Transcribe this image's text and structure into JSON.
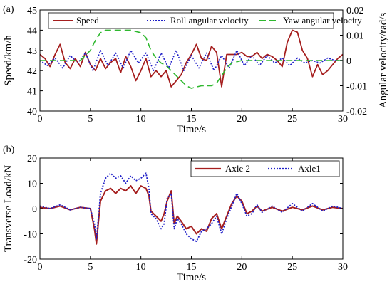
{
  "chart_data": [
    {
      "panel_label": "(a)",
      "type": "line",
      "xlabel": "Time/s",
      "ylabel_left": "Speed/km/h",
      "ylabel_right": "Angular velocity/rad/s",
      "xlim": [
        0,
        30
      ],
      "ylim_left": [
        40,
        45
      ],
      "ylim_right": [
        -0.02,
        0.02
      ],
      "xticks": [
        0,
        5,
        10,
        15,
        20,
        25,
        30
      ],
      "yticks_left": [
        40,
        41,
        42,
        43,
        44,
        45
      ],
      "yticks_right": [
        -0.02,
        -0.01,
        0,
        0.01,
        0.02
      ],
      "yticks_right_labels": [
        "-0.02",
        "-0.01",
        "0",
        "0.01",
        "0.02"
      ],
      "legend_position": "top",
      "series": [
        {
          "name": "Speed",
          "axis": "left",
          "color": "#a51e1e",
          "style": "solid",
          "x": [
            0,
            0.5,
            1,
            1.5,
            2,
            2.5,
            3,
            3.5,
            4,
            4.5,
            5,
            5.5,
            6,
            6.5,
            7,
            7.5,
            8,
            8.5,
            9,
            9.5,
            10,
            10.5,
            11,
            11.5,
            12,
            12.5,
            13,
            13.5,
            14,
            14.5,
            15,
            15.5,
            16,
            16.5,
            17,
            17.5,
            18,
            18.5,
            19,
            19.5,
            20,
            20.5,
            21,
            21.5,
            22,
            22.5,
            23,
            23.5,
            24,
            24.5,
            25,
            25.5,
            26,
            26.5,
            27,
            27.5,
            28,
            28.5,
            29,
            29.5,
            30
          ],
          "values": [
            42.8,
            42.6,
            42.2,
            42.8,
            43.3,
            42.4,
            42.1,
            42.6,
            42.2,
            42.9,
            42.3,
            42.0,
            42.6,
            42.1,
            42.4,
            42.6,
            41.9,
            42.7,
            42.2,
            41.5,
            42.0,
            42.6,
            41.7,
            42.0,
            41.7,
            42.0,
            41.2,
            41.5,
            41.8,
            42.4,
            42.8,
            43.3,
            42.6,
            42.5,
            43.2,
            42.9,
            41.2,
            42.8,
            42.8,
            42.8,
            42.9,
            42.7,
            42.7,
            42.9,
            42.6,
            42.8,
            42.7,
            42.5,
            42.2,
            43.4,
            44.0,
            43.9,
            43.0,
            42.6,
            41.7,
            42.3,
            41.8,
            42.0,
            42.3,
            42.6,
            42.8
          ]
        },
        {
          "name": "Roll angular velocity",
          "axis": "right",
          "color": "#1f1fc8",
          "style": "dotted",
          "x": [
            0,
            0.75,
            1.5,
            2.25,
            3,
            3.75,
            4.5,
            5.25,
            6,
            6.75,
            7.5,
            8.25,
            9,
            9.75,
            10.5,
            11.25,
            12,
            12.75,
            13.5,
            14.25,
            15,
            15.75,
            16.5,
            17.25,
            18,
            18.75,
            19.5,
            20.25,
            21,
            21.75,
            22.5,
            23.25,
            24,
            24.75,
            25.5,
            26.25,
            27,
            27.75,
            28.5,
            29.25,
            30
          ],
          "values": [
            0.0,
            -0.002,
            0.001,
            -0.003,
            0.002,
            -0.001,
            0.003,
            -0.004,
            0.004,
            -0.002,
            0.003,
            -0.003,
            0.004,
            -0.001,
            0.003,
            -0.004,
            0.003,
            -0.003,
            0.004,
            -0.004,
            0.002,
            -0.003,
            0.003,
            -0.004,
            0.002,
            -0.003,
            0.004,
            -0.002,
            0.002,
            -0.002,
            0.002,
            -0.001,
            0.001,
            -0.002,
            0.001,
            -0.001,
            0.0,
            -0.001,
            0.001,
            0.0,
            0.0
          ]
        },
        {
          "name": "Yaw angular velocity",
          "axis": "right",
          "color": "#2fb82f",
          "style": "dashed",
          "x": [
            0,
            1,
            2,
            3,
            4,
            5,
            5.5,
            6,
            6.5,
            7,
            7.5,
            8,
            9,
            10,
            10.5,
            11,
            11.5,
            12,
            12.5,
            13,
            13.5,
            14,
            14.5,
            15,
            16,
            17,
            17.5,
            18,
            18.5,
            19,
            20,
            21,
            22,
            23,
            24,
            25,
            26,
            27,
            28,
            29,
            30
          ],
          "values": [
            0.0,
            0.0,
            0.0,
            0.0,
            0.0,
            0.004,
            0.008,
            0.011,
            0.012,
            0.012,
            0.012,
            0.012,
            0.012,
            0.011,
            0.009,
            0.004,
            0.001,
            -0.001,
            -0.002,
            -0.004,
            -0.006,
            -0.008,
            -0.01,
            -0.011,
            -0.01,
            -0.01,
            -0.009,
            -0.006,
            -0.003,
            -0.001,
            0.0,
            0.0,
            0.0,
            0.0,
            0.0,
            0.0,
            0.0,
            0.0,
            0.0,
            0.0,
            0.0
          ]
        }
      ]
    },
    {
      "panel_label": "(b)",
      "type": "line",
      "xlabel": "Time/s",
      "ylabel": "Transverse Load/kN",
      "xlim": [
        0,
        30
      ],
      "ylim": [
        -20,
        20
      ],
      "xticks": [
        0,
        5,
        10,
        15,
        20,
        25,
        30
      ],
      "yticks": [
        -20,
        -10,
        0,
        10,
        20
      ],
      "legend_position": "top-right",
      "series": [
        {
          "name": "Axle 2",
          "color": "#a51e1e",
          "style": "solid",
          "x": [
            0,
            1,
            2,
            3,
            4,
            5,
            5.4,
            5.6,
            5.8,
            6,
            6.5,
            7,
            7.5,
            8,
            8.5,
            9,
            9.5,
            10,
            10.5,
            10.8,
            11,
            11.5,
            12,
            12.3,
            12.6,
            13,
            13.3,
            13.6,
            14,
            14.5,
            15,
            15.5,
            16,
            16.5,
            17,
            17.5,
            18,
            18.5,
            19,
            19.5,
            20,
            20.5,
            21,
            21.5,
            22,
            23,
            24,
            25,
            26,
            27,
            28,
            29,
            30
          ],
          "values": [
            0.5,
            0.0,
            1.0,
            -0.5,
            0.5,
            0.0,
            -8.0,
            -14.0,
            -5.0,
            3.0,
            7.0,
            8.0,
            6.0,
            8.0,
            7.0,
            9.0,
            6.0,
            9.0,
            8.0,
            5.0,
            -1.0,
            -3.0,
            -5.0,
            -2.0,
            3.0,
            7.0,
            -6.0,
            -3.0,
            -5.0,
            -8.0,
            -7.0,
            -10.0,
            -8.0,
            -9.0,
            -4.0,
            -2.0,
            -8.0,
            -3.0,
            2.0,
            5.0,
            3.0,
            -2.0,
            -1.0,
            1.0,
            -1.0,
            0.5,
            -1.0,
            0.5,
            -0.5,
            1.0,
            -0.5,
            0.5,
            0.0
          ]
        },
        {
          "name": "Axle1",
          "color": "#1f1fc8",
          "style": "dotted",
          "x": [
            0,
            1,
            2,
            3,
            4,
            5,
            5.4,
            5.6,
            5.8,
            6,
            6.5,
            7,
            7.5,
            8,
            8.5,
            9,
            9.5,
            10,
            10.5,
            10.8,
            11,
            11.5,
            12,
            12.3,
            12.6,
            13,
            13.3,
            13.6,
            14,
            14.5,
            15,
            15.5,
            16,
            16.5,
            17,
            17.5,
            18,
            18.5,
            19,
            19.5,
            20,
            20.5,
            21,
            21.5,
            22,
            23,
            24,
            25,
            26,
            27,
            28,
            29,
            30
          ],
          "values": [
            1.0,
            0.0,
            1.5,
            -0.5,
            0.5,
            0.0,
            -6.0,
            -12.0,
            -3.0,
            6.0,
            12.0,
            14.0,
            12.0,
            13.0,
            10.0,
            13.0,
            11.0,
            12.0,
            14.0,
            8.0,
            -2.0,
            -4.0,
            -8.0,
            -6.0,
            4.0,
            6.0,
            -8.0,
            -4.0,
            -6.0,
            -10.0,
            -12.0,
            -13.0,
            -9.0,
            -8.0,
            -6.0,
            -3.0,
            -10.0,
            -4.0,
            1.0,
            6.0,
            2.0,
            -3.0,
            -2.0,
            1.5,
            -1.5,
            1.0,
            -1.5,
            2.0,
            -1.0,
            2.0,
            -1.0,
            1.0,
            0.0
          ]
        }
      ]
    }
  ]
}
